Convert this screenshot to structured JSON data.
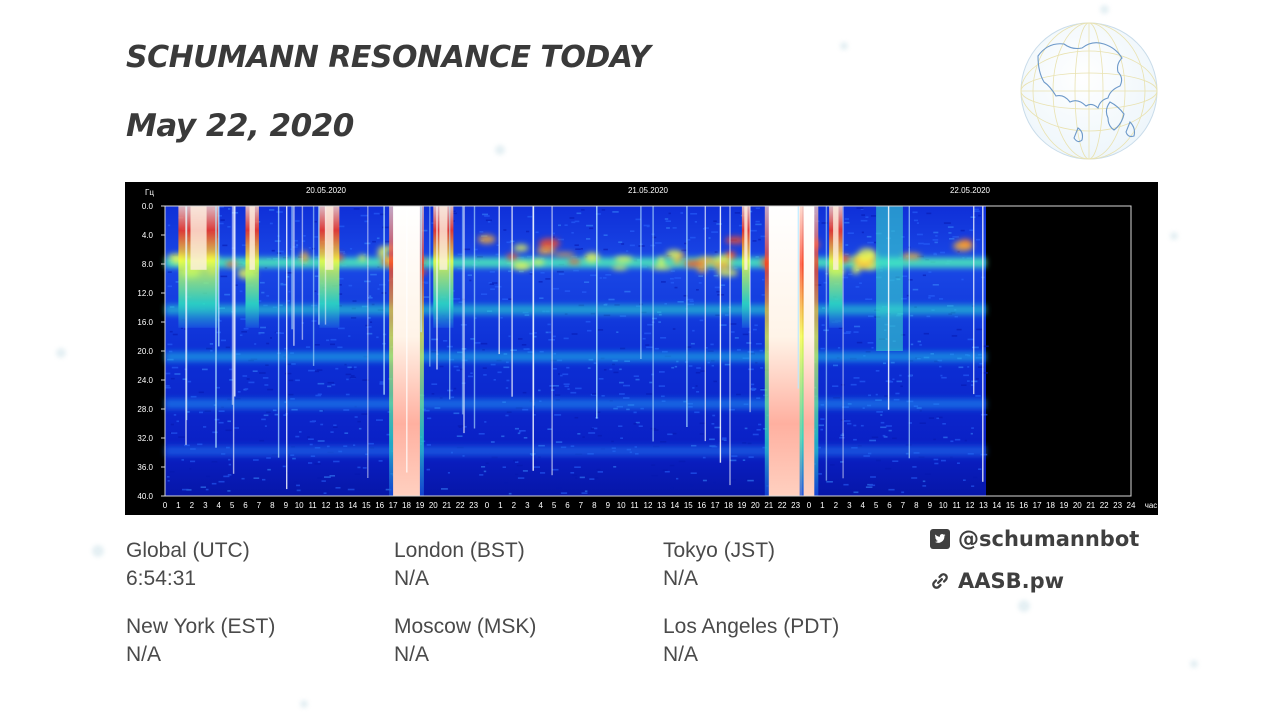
{
  "header": {
    "title": "SCHUMANN RESONANCE TODAY",
    "date": "May 22, 2020"
  },
  "chart_data": {
    "type": "heatmap",
    "y_unit_label": "Гц",
    "x_unit_label": "час",
    "date_labels": [
      "20.05.2020",
      "21.05.2020",
      "22.05.2020"
    ],
    "y_ticks": [
      "0.0",
      "4.0",
      "8.0",
      "12.0",
      "16.0",
      "20.0",
      "24.0",
      "28.0",
      "32.0",
      "36.0",
      "40.0"
    ],
    "ylim": [
      0,
      40
    ],
    "x_ticks": [
      "0",
      "1",
      "2",
      "3",
      "4",
      "5",
      "6",
      "7",
      "8",
      "9",
      "10",
      "11",
      "12",
      "13",
      "14",
      "15",
      "16",
      "17",
      "18",
      "19",
      "20",
      "21",
      "22",
      "23",
      "0",
      "1",
      "2",
      "3",
      "4",
      "5",
      "6",
      "7",
      "8",
      "9",
      "10",
      "11",
      "12",
      "13",
      "14",
      "15",
      "16",
      "17",
      "18",
      "19",
      "20",
      "21",
      "22",
      "23",
      "0",
      "1",
      "2",
      "3",
      "4",
      "5",
      "6",
      "7",
      "8",
      "9",
      "10",
      "11",
      "12",
      "13",
      "14",
      "15",
      "16",
      "17",
      "18",
      "19",
      "20",
      "21",
      "22",
      "23",
      "24"
    ],
    "xlim_hours": [
      0,
      72
    ],
    "data_end_hour": 61.2,
    "resonance_bands_hz": [
      7.8,
      14.3,
      20.8,
      27.3,
      33.8
    ],
    "bursts": [
      {
        "start_hour": 17.0,
        "end_hour": 19.0,
        "intensity": "max"
      },
      {
        "start_hour": 11.5,
        "end_hour": 13.0,
        "intensity": "high"
      },
      {
        "start_hour": 6.0,
        "end_hour": 7.0,
        "intensity": "high"
      },
      {
        "start_hour": 1.0,
        "end_hour": 4.0,
        "intensity": "high"
      },
      {
        "start_hour": 20.0,
        "end_hour": 21.5,
        "intensity": "high"
      },
      {
        "start_hour": 43.0,
        "end_hour": 43.6,
        "intensity": "high"
      },
      {
        "start_hour": 45.0,
        "end_hour": 47.5,
        "intensity": "max"
      },
      {
        "start_hour": 47.6,
        "end_hour": 48.4,
        "intensity": "max"
      },
      {
        "start_hour": 49.5,
        "end_hour": 50.5,
        "intensity": "high"
      },
      {
        "start_hour": 53.0,
        "end_hour": 55.0,
        "intensity": "medium"
      }
    ],
    "colors": {
      "low": "#0a1fd6",
      "mid": "#19e6d2",
      "high": "#f2ff30",
      "peak": "#ff2a12",
      "max": "#ffffff"
    }
  },
  "timezones": [
    {
      "label": "Global (UTC)",
      "value": "6:54:31"
    },
    {
      "label": "London (BST)",
      "value": "N/A"
    },
    {
      "label": "Tokyo (JST)",
      "value": "N/A"
    },
    {
      "label": "New York (EST)",
      "value": "N/A"
    },
    {
      "label": "Moscow (MSK)",
      "value": "N/A"
    },
    {
      "label": "Los Angeles (PDT)",
      "value": "N/A"
    }
  ],
  "social": {
    "twitter_icon": "twitter-icon",
    "twitter": "@schumannbot",
    "link_icon": "link-icon",
    "website": "AASB.pw"
  }
}
